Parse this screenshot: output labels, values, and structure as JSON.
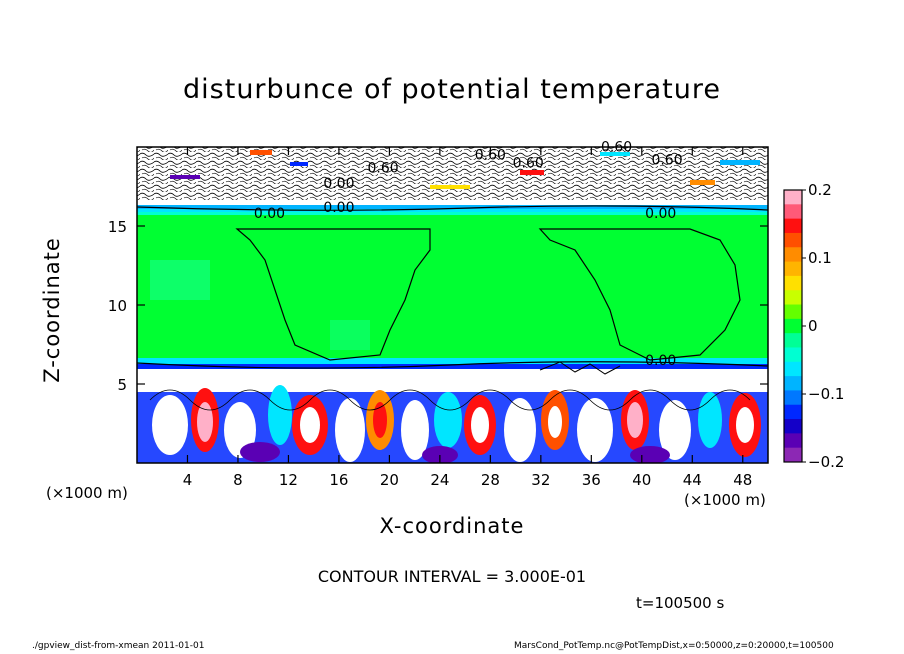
{
  "chart_data": {
    "type": "heatmap",
    "title": "disturbunce of potential temperature",
    "xlabel": "X-coordinate",
    "ylabel": "Z-coordinate",
    "x_unit_left": "(×1000 m)",
    "x_unit_right": "(×1000 m)",
    "xlim": [
      0,
      50
    ],
    "ylim": [
      0,
      20
    ],
    "x_ticks": [
      4,
      8,
      12,
      16,
      20,
      24,
      28,
      32,
      36,
      40,
      44,
      48
    ],
    "x_tick_labels": [
      "4",
      "8",
      "12",
      "16",
      "20",
      "24",
      "28",
      "32",
      "36",
      "40",
      "44",
      "48"
    ],
    "y_ticks": [
      5,
      10,
      15
    ],
    "y_tick_labels": [
      "5",
      "10",
      "15"
    ],
    "colorbar": {
      "range": [
        -0.2,
        0.2
      ],
      "ticks": [
        0.2,
        0.1,
        0,
        -0.1,
        -0.2
      ],
      "tick_labels": [
        "0.2",
        "0.1",
        "0",
        "−0.1",
        "−0.2"
      ],
      "colors": [
        "#ffb0c8",
        "#ff5a78",
        "#ff1010",
        "#ff5000",
        "#ff8c00",
        "#ffb400",
        "#ffe000",
        "#c8ff00",
        "#64ff00",
        "#00ff32",
        "#00ff96",
        "#00ffd2",
        "#00e6ff",
        "#00b4ff",
        "#0078ff",
        "#0028ff",
        "#1400c8",
        "#5a00b4",
        "#8c28b4"
      ]
    },
    "contour_labels": [
      "0.60",
      "0.60",
      "0.60",
      "0.00",
      "0.60",
      "0.60",
      "0.00",
      "0.00",
      "0.00",
      "0.00"
    ],
    "contour_interval": "CONTOUR INTERVAL = 3.000E-01",
    "time": "t=100500 s"
  },
  "footer": {
    "left": "./gpview_dist-from-xmean  2011-01-01",
    "right": "MarsCond_PotTemp.nc@PotTempDist,x=0:50000,z=0:20000,t=100500"
  },
  "colors": {
    "green": "#00ff32",
    "white": "#ffffff",
    "blue": "#0028ff",
    "magenta": "#cc00cc",
    "red": "#ff1010"
  }
}
